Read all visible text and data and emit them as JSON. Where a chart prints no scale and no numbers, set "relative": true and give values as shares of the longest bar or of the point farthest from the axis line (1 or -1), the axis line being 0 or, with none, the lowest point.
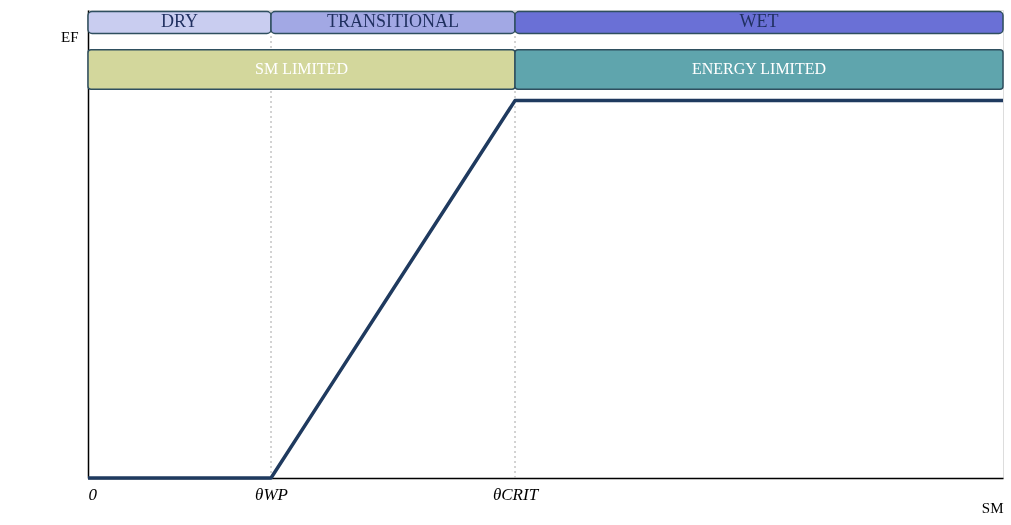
{
  "chart_data": {
    "type": "line",
    "relative": true,
    "xlabel": "SM",
    "ylabel": "EF",
    "line_style": "solid",
    "categories": [
      "0",
      null,
      null,
      "θWP",
      null,
      null,
      null,
      "θCRIT",
      null,
      null,
      null,
      null,
      null,
      null,
      null,
      null
    ],
    "series": [
      {
        "color": "#1f3a5f",
        "values": [
          0,
          0,
          0,
          0,
          0.25,
          0.5,
          0.75,
          1,
          1,
          1,
          1,
          1,
          1,
          1,
          1,
          1
        ]
      }
    ],
    "ref_lines": [
      {
        "axis": "x",
        "value": "θWP",
        "color": "#a6a6a6",
        "line_style": "dotted"
      },
      {
        "axis": "x",
        "value": "θCRIT",
        "color": "#a6a6a6",
        "line_style": "dotted"
      }
    ],
    "annotations": [
      "DRY",
      "TRANSITIONAL",
      "WET",
      "SM LIMITED",
      "ENERGY LIMITED"
    ]
  }
}
